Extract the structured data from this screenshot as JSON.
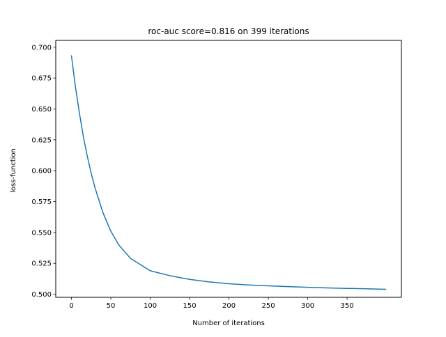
{
  "chart_data": {
    "type": "line",
    "title": "roc-auc score=0.816 on 399 iterations",
    "xlabel": "Number of iterations",
    "ylabel": "loss-function",
    "xlim": [
      -19.95,
      418.95
    ],
    "ylim": [
      0.4975,
      0.7055
    ],
    "x_ticks": [
      0,
      50,
      100,
      150,
      200,
      250,
      300,
      350
    ],
    "x_tick_labels": [
      "0",
      "50",
      "100",
      "150",
      "200",
      "250",
      "300",
      "350"
    ],
    "y_ticks": [
      0.5,
      0.525,
      0.55,
      0.575,
      0.6,
      0.625,
      0.65,
      0.675,
      0.7
    ],
    "y_tick_labels": [
      "0.500",
      "0.525",
      "0.550",
      "0.575",
      "0.600",
      "0.625",
      "0.650",
      "0.675",
      "0.700"
    ],
    "grid": false,
    "line_color": "#1f77b4",
    "series": [
      {
        "x": [
          0,
          5,
          10,
          15,
          20,
          25,
          30,
          40,
          50,
          60,
          75,
          100,
          125,
          150,
          175,
          200,
          225,
          250,
          275,
          300,
          325,
          350,
          375,
          399
        ],
        "values": [
          0.693,
          0.668,
          0.647,
          0.628,
          0.612,
          0.598,
          0.586,
          0.566,
          0.551,
          0.54,
          0.529,
          0.519,
          0.515,
          0.512,
          0.51,
          0.5085,
          0.5075,
          0.5068,
          0.5062,
          0.5056,
          0.5051,
          0.5047,
          0.5044,
          0.504
        ]
      }
    ]
  }
}
